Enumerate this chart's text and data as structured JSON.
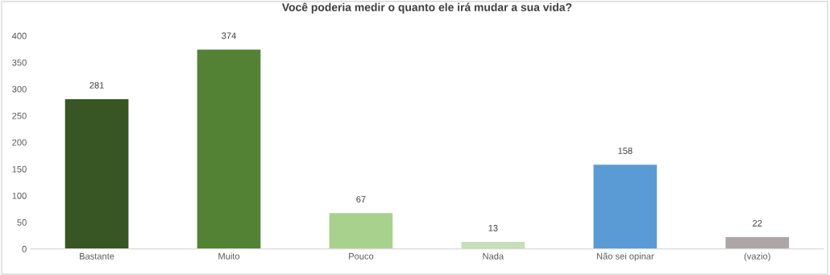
{
  "chart_data": {
    "type": "bar",
    "title": "Você poderia medir o quanto ele irá mudar a sua vida?",
    "categories": [
      "Bastante",
      "Muito",
      "Pouco",
      "Nada",
      "Não sei opinar",
      "(vazio)"
    ],
    "values": [
      281,
      374,
      67,
      13,
      158,
      22
    ],
    "colors": [
      "#375623",
      "#548235",
      "#a9d18e",
      "#c5e0b4",
      "#5b9bd5",
      "#aca6a6"
    ],
    "ylim": [
      0,
      400
    ],
    "yticks": [
      0,
      50,
      100,
      150,
      200,
      250,
      300,
      350,
      400
    ],
    "data_labels": true,
    "grid": false
  }
}
